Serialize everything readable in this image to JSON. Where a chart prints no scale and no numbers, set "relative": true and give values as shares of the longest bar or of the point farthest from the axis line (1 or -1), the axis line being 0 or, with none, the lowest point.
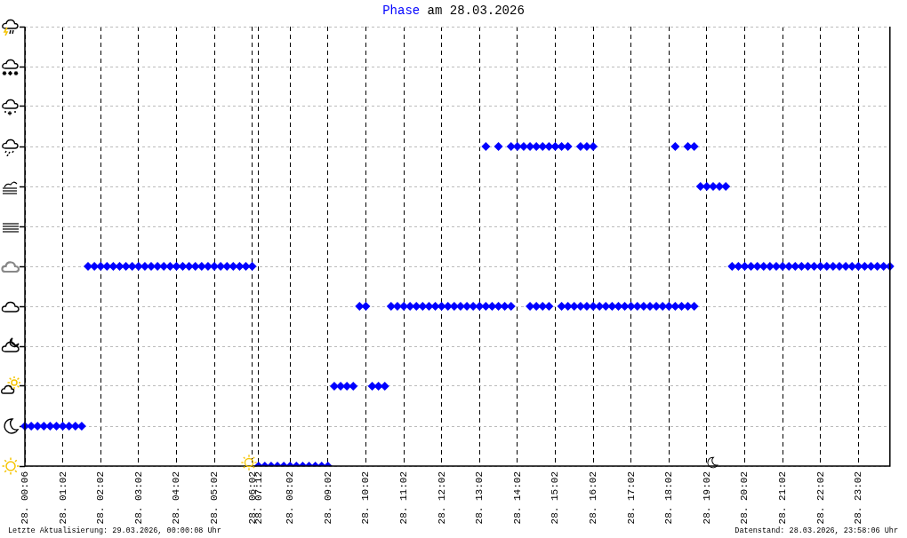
{
  "chart_data": {
    "type": "scatter",
    "title": "Phase am 28.03.2026",
    "annotations": [
      "Letzte Aktualisierung: 29.03.2026, 00:00:08 Uhr",
      "Datenstand: 28.03.2026, 23:58:06 Uhr"
    ],
    "categories": [
      "28. 00:06",
      null,
      null,
      null,
      null,
      null,
      "28. 01:02",
      null,
      null,
      null,
      null,
      null,
      "28. 02:02",
      null,
      null,
      null,
      null,
      null,
      "28. 03:02",
      null,
      null,
      null,
      null,
      null,
      "28. 04:02",
      null,
      null,
      null,
      null,
      null,
      "28. 05:02",
      null,
      null,
      null,
      null,
      null,
      "28. 06:02",
      "28. 07:12",
      null,
      null,
      null,
      null,
      "28. 08:02",
      null,
      null,
      null,
      null,
      null,
      "28. 09:02",
      null,
      null,
      null,
      null,
      null,
      "28. 10:02",
      null,
      null,
      null,
      null,
      null,
      "28. 11:02",
      null,
      null,
      null,
      null,
      null,
      "28. 12:02",
      null,
      null,
      null,
      null,
      null,
      "28. 13:02",
      null,
      null,
      null,
      null,
      null,
      "28. 14:02",
      null,
      null,
      null,
      null,
      null,
      "28. 15:02",
      null,
      null,
      null,
      null,
      null,
      "28. 16:02",
      null,
      null,
      null,
      null,
      null,
      "28. 17:02",
      null,
      null,
      null,
      null,
      null,
      "28. 18:02",
      null,
      null,
      null,
      null,
      null,
      "28. 19:02",
      null,
      null,
      null,
      null,
      null,
      "28. 20:02",
      null,
      null,
      null,
      null,
      null,
      "28. 21:02",
      null,
      null,
      null,
      null,
      null,
      "28. 22:02",
      null,
      null,
      null,
      null,
      null,
      "28. 23:02",
      null,
      null,
      null,
      null,
      null
    ],
    "series": [
      {
        "color": "#0000ff",
        "values": [
          0.125,
          0.125,
          0.125,
          0.125,
          0.125,
          0.125,
          0.125,
          0.125,
          0.125,
          0.125,
          0.625,
          0.625,
          0.625,
          0.625,
          0.625,
          0.625,
          0.625,
          0.625,
          0.625,
          0.625,
          0.625,
          0.625,
          0.625,
          0.625,
          0.625,
          0.625,
          0.625,
          0.625,
          0.625,
          0.625,
          0.625,
          0.625,
          0.625,
          0.625,
          0.625,
          0.625,
          0.625,
          0,
          0,
          0,
          0,
          0,
          0,
          0,
          0,
          0,
          0,
          0,
          0,
          0.25,
          0.25,
          0.25,
          0.25,
          0.5,
          0.5,
          0.25,
          0.25,
          0.25,
          0.5,
          0.5,
          0.5,
          0.5,
          0.5,
          0.5,
          0.5,
          0.5,
          0.5,
          0.5,
          0.5,
          0.5,
          0.5,
          0.5,
          0.5,
          0.5,
          0.5,
          0.5,
          0.5,
          0.5,
          null,
          null,
          0.5,
          0.5,
          0.5,
          0.5,
          null,
          0.5,
          0.5,
          0.5,
          0.5,
          0.5,
          0.5,
          0.5,
          0.5,
          0.5,
          0.5,
          0.5,
          0.5,
          0.5,
          0.5,
          0.5,
          0.5,
          0.5,
          0.5,
          0.5,
          0.5,
          0.5,
          0.5,
          0.875,
          0.875,
          0.875,
          0.875,
          0.875,
          0.625,
          0.625,
          0.625,
          0.625,
          0.625,
          0.625,
          0.625,
          0.625,
          0.625,
          0.625,
          0.625,
          0.625,
          0.625,
          0.625,
          0.625,
          0.625,
          0.625,
          0.625,
          0.625,
          0.625,
          0.625,
          0.625,
          0.625,
          0.625,
          0.625,
          0.625
        ]
      },
      {
        "color": "#0000ff",
        "values": [
          null,
          null,
          null,
          null,
          null,
          null,
          null,
          null,
          null,
          null,
          null,
          null,
          null,
          null,
          null,
          null,
          null,
          null,
          null,
          null,
          null,
          null,
          null,
          null,
          null,
          null,
          null,
          null,
          null,
          null,
          null,
          null,
          null,
          null,
          null,
          null,
          null,
          null,
          null,
          null,
          null,
          null,
          null,
          null,
          null,
          null,
          null,
          null,
          null,
          null,
          null,
          null,
          null,
          null,
          null,
          null,
          null,
          null,
          null,
          null,
          null,
          null,
          null,
          null,
          null,
          null,
          null,
          null,
          null,
          null,
          null,
          null,
          null,
          1,
          null,
          1,
          null,
          1,
          1,
          1,
          1,
          1,
          1,
          1,
          1,
          1,
          1,
          null,
          1,
          1,
          1,
          null,
          null,
          null,
          null,
          null,
          null,
          null,
          null,
          null,
          null,
          null,
          null,
          1,
          null,
          1,
          1,
          null,
          null,
          null,
          null,
          null,
          null,
          null,
          null,
          null,
          null,
          null,
          null,
          null,
          null,
          null,
          null,
          null,
          null,
          null,
          null,
          null,
          null,
          null,
          null,
          null,
          null,
          null,
          null,
          null,
          null,
          null
        ]
      }
    ],
    "relative": true,
    "tick_labels": "x",
    "grid": true,
    "legend": false,
    "marker": "diamond"
  }
}
